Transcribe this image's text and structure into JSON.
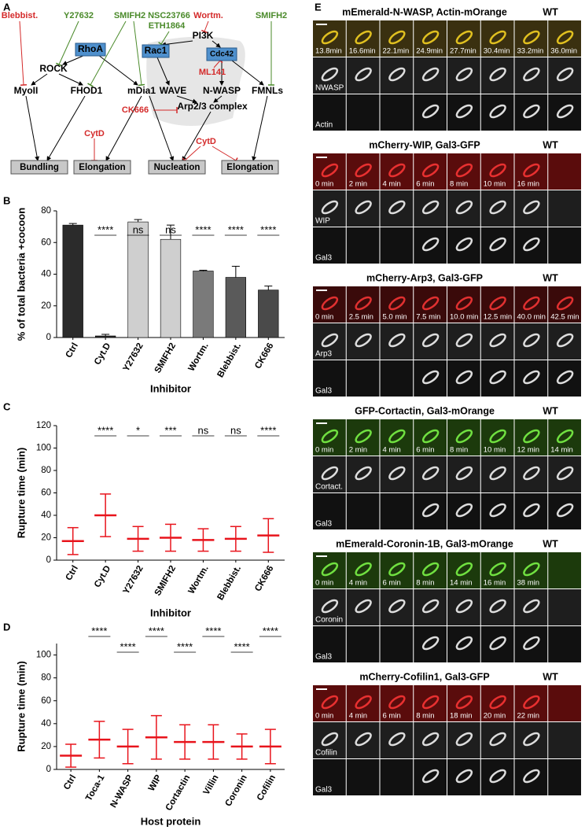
{
  "panel_labels": [
    "A",
    "B",
    "C",
    "D",
    "E"
  ],
  "panel_a": {
    "inhibitors": [
      "Blebbist.",
      "Y27632",
      "SMIFH2",
      "NSC23766",
      "ETH1864",
      "Wortm.",
      "SMIFH2",
      "ML141",
      "CK666",
      "CytD",
      "CytD"
    ],
    "gtpases": [
      "RhoA",
      "Rac1",
      "Cdc42"
    ],
    "proteins": [
      "PI3K",
      "ROCK",
      "MyoII",
      "FHOD1",
      "mDia1",
      "WAVE",
      "N-WASP",
      "FMNLs",
      "Arp2/3 complex"
    ],
    "outputs": [
      "Bundling",
      "Elongation",
      "Nucleation",
      "Elongation"
    ]
  },
  "chart_data": [
    {
      "type": "bar",
      "y_label": "% of total bacteria +cocoon",
      "x_label": "Inhibitor",
      "categories": [
        "Ctrl",
        "Cyt.D",
        "Y27632",
        "SMIFH2",
        "Wortm.",
        "Blebbist.",
        "CK666"
      ],
      "values": [
        71,
        1,
        73,
        62,
        42,
        38,
        30
      ],
      "errors": [
        1,
        1,
        1.5,
        9,
        0.5,
        7,
        2.5
      ],
      "colors": [
        "#2b2b2b",
        "#2b2b2b",
        "#cfcfcf",
        "#cfcfcf",
        "#7a7a7a",
        "#5a5a5a",
        "#4a4a4a"
      ],
      "significance": [
        null,
        "****",
        "ns",
        "ns",
        "****",
        "****",
        "****"
      ],
      "ylim": [
        0,
        80
      ],
      "yticks": [
        0,
        20,
        40,
        60,
        80
      ]
    },
    {
      "type": "dot",
      "y_label": "Rupture time (min)",
      "x_label": "Inhibitor",
      "categories": [
        "Ctrl",
        "Cyt.D",
        "Y27632",
        "SMIFH2",
        "Wortm.",
        "Blebbist.",
        "CK666"
      ],
      "values": [
        17,
        40,
        19,
        20,
        18,
        19,
        22
      ],
      "errors": [
        12,
        19,
        11,
        12,
        10,
        11,
        15
      ],
      "color": "#e8141c",
      "significance": [
        null,
        "****",
        "*",
        "***",
        "ns",
        "ns",
        "****"
      ],
      "ylim": [
        0,
        120
      ],
      "yticks": [
        0,
        20,
        40,
        60,
        80,
        100,
        120
      ]
    },
    {
      "type": "dot",
      "y_label": "Rupture time (min)",
      "x_label": "Host protein",
      "categories": [
        "Ctrl",
        "Toca-1",
        "N-WASP",
        "WIP",
        "Cortactin",
        "Villin",
        "Coronin",
        "Cofilin"
      ],
      "values": [
        12,
        26,
        20,
        28,
        24,
        24,
        20,
        20
      ],
      "errors": [
        10,
        16,
        15,
        19,
        15,
        15,
        11,
        15
      ],
      "color": "#e8141c",
      "significance": [
        null,
        "****",
        "****",
        "****",
        "****",
        "****",
        "****",
        "****"
      ],
      "ylim": [
        0,
        110
      ],
      "yticks": [
        0,
        20,
        40,
        60,
        80,
        100
      ]
    }
  ],
  "panel_e": [
    {
      "title": "mEmerald-N-WASP, Actin-mOrange",
      "strain": "WT",
      "times": [
        "13.8min",
        "16.6min",
        "22.1min",
        "24.9min",
        "27.7min",
        "30.4min",
        "33.2min",
        "36.0min"
      ],
      "channels": [
        "NWASP",
        "Actin"
      ]
    },
    {
      "title": "mCherry-WIP, Gal3-GFP",
      "strain": "WT",
      "times": [
        "0 min",
        "2 min",
        "4 min",
        "6 min",
        "8 min",
        "10 min",
        "16 min"
      ],
      "channels": [
        "WIP",
        "Gal3"
      ]
    },
    {
      "title": "mCherry-Arp3, Gal3-GFP",
      "strain": "WT",
      "times": [
        "0 min",
        "2.5 min",
        "5.0 min",
        "7.5 min",
        "10.0 min",
        "12.5 min",
        "40.0 min",
        "42.5 min"
      ],
      "channels": [
        "Arp3",
        "Gal3"
      ]
    },
    {
      "title": "GFP-Cortactin, Gal3-mOrange",
      "strain": "WT",
      "times": [
        "0 min",
        "2 min",
        "4 min",
        "6 min",
        "8 min",
        "10 min",
        "12 min",
        "14 min"
      ],
      "channels": [
        "Cortact.",
        "Gal3"
      ]
    },
    {
      "title": "mEmerald-Coronin-1B, Gal3-mOrange",
      "strain": "WT",
      "times": [
        "0 min",
        "4 min",
        "6 min",
        "8 min",
        "14 min",
        "16 min",
        "38 min"
      ],
      "channels": [
        "Coronin",
        "Gal3"
      ]
    },
    {
      "title": "mCherry-Cofilin1, Gal3-GFP",
      "strain": "WT",
      "times": [
        "0 min",
        "4 min",
        "6 min",
        "8 min",
        "18 min",
        "20 min",
        "22 min"
      ],
      "channels": [
        "Cofilin",
        "Gal3"
      ]
    }
  ]
}
